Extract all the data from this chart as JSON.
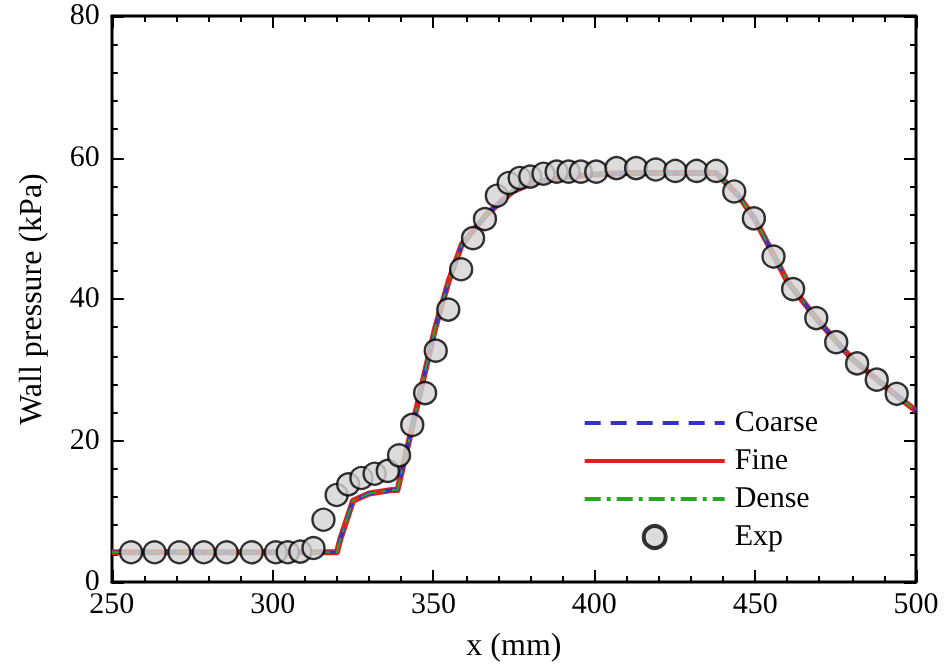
{
  "chart_data": {
    "type": "line",
    "xlabel": "x (mm)",
    "ylabel": "Wall pressure (kPa)",
    "xlim": [
      250,
      500
    ],
    "xticks": [
      250,
      300,
      350,
      400,
      450,
      500
    ],
    "ylim": [
      0,
      80
    ],
    "yticks": [
      0,
      20,
      40,
      60,
      80
    ],
    "grid": false,
    "legend": "bottom right",
    "series": [
      {
        "name": "Coarse",
        "color": "#3333cc",
        "line_style": "dashed",
        "marker": "none",
        "x": [
          250,
          300,
          320,
          321,
          325,
          330,
          337,
          338.8,
          342.4,
          346.5,
          350.6,
          354.7,
          358.8,
          366.4,
          374.6,
          380,
          390,
          400,
          410,
          420,
          438,
          445,
          450,
          460,
          470,
          480,
          490,
          500
        ],
        "values": [
          4.2,
          4.2,
          4.2,
          6,
          11.5,
          12.5,
          13,
          13,
          20,
          28,
          36,
          42.5,
          47.7,
          51.9,
          55.2,
          56.3,
          57.2,
          57.6,
          57.8,
          57.8,
          57.8,
          54.5,
          51.2,
          42.5,
          36.7,
          31.6,
          27.8,
          24.2
        ]
      },
      {
        "name": "Fine",
        "color": "#dd2222",
        "line_style": "solid",
        "marker": "none",
        "x": [
          250,
          300,
          320,
          321,
          325,
          330,
          337,
          338.8,
          342.4,
          346.5,
          350.6,
          354.7,
          358.8,
          366.4,
          374.6,
          380,
          390,
          400,
          410,
          420,
          438,
          445,
          450,
          460,
          470,
          480,
          490,
          500
        ],
        "values": [
          4.2,
          4.2,
          4.2,
          6,
          11.5,
          12.5,
          13,
          13,
          20,
          28,
          36,
          42.5,
          47.7,
          51.9,
          55.2,
          56.3,
          57.2,
          57.6,
          57.8,
          57.8,
          57.8,
          54.5,
          51.2,
          42.5,
          36.7,
          31.6,
          27.8,
          24.2
        ]
      },
      {
        "name": "Dense",
        "color": "#22aa22",
        "line_style": "dashdot",
        "marker": "none",
        "x": [
          250,
          300,
          320,
          321,
          325,
          330,
          337,
          338.8,
          342.4,
          346.5,
          350.6,
          354.7,
          358.8,
          366.4,
          374.6,
          380,
          390,
          400,
          410,
          420,
          438,
          445,
          450,
          460,
          470,
          480,
          490,
          500
        ],
        "values": [
          4.2,
          4.2,
          4.2,
          6,
          11.5,
          12.5,
          13,
          13,
          20,
          28,
          36,
          42.5,
          47.7,
          51.9,
          55.2,
          56.3,
          57.2,
          57.6,
          57.8,
          57.8,
          57.8,
          54.5,
          51.2,
          42.5,
          36.7,
          31.6,
          27.8,
          24.2
        ]
      },
      {
        "name": "Exp",
        "type": "scatter",
        "color": "#d3d3d3",
        "marker": "circle",
        "x": [
          256,
          263.3,
          271,
          278.6,
          285.7,
          293.5,
          301,
          304.7,
          308.6,
          312.7,
          315.8,
          319.9,
          323.5,
          327.6,
          331.7,
          335.8,
          339.3,
          343.4,
          347.4,
          350.7,
          354.6,
          358.6,
          362.3,
          366,
          369.7,
          373.4,
          376.8,
          380.1,
          384.2,
          388.3,
          392,
          395.8,
          400.6,
          406.9,
          413,
          419.1,
          425.2,
          431.8,
          437.9,
          443.5,
          449.6,
          455.7,
          461.8,
          469,
          475.2,
          481.7,
          487.8,
          494
        ],
        "values": [
          4.2,
          4.2,
          4.2,
          4.2,
          4.2,
          4.2,
          4.2,
          4.2,
          4.3,
          4.8,
          8.8,
          12.3,
          13.8,
          14.7,
          15.3,
          15.7,
          17.9,
          22.2,
          26.7,
          32.7,
          38.5,
          44.2,
          48.6,
          51.3,
          54.6,
          56.4,
          57.1,
          57.3,
          57.7,
          58,
          58,
          58,
          58,
          58.5,
          58.5,
          58.3,
          58.1,
          58.1,
          58.1,
          55.2,
          51.4,
          46,
          41.4,
          37.3,
          33.9,
          30.9,
          28.6,
          26.6
        ]
      }
    ]
  }
}
